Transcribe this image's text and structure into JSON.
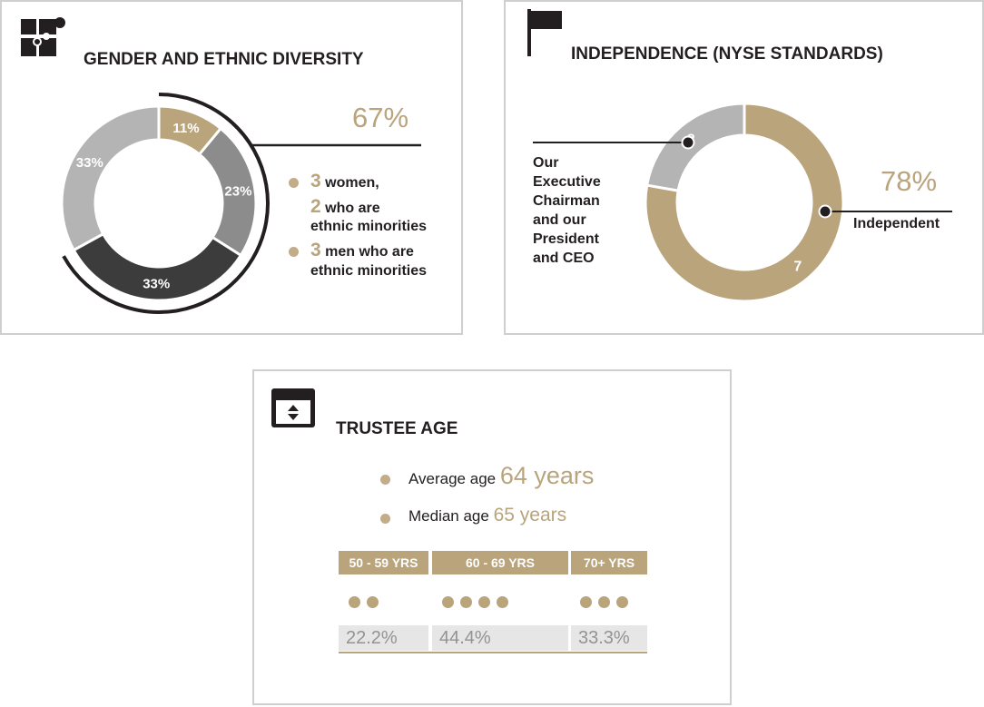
{
  "colors": {
    "accent": "#b9a47b",
    "light_gray": "#b4b4b4",
    "mid_gray": "#8c8c8c",
    "dark_gray": "#3c3c3c",
    "text": "#231f20",
    "border": "#cfcfcf"
  },
  "diversity": {
    "title": "GENDER AND ETHNIC DIVERSITY",
    "icon": "puzzle-icon",
    "highlight_pct": "67%",
    "legend": [
      {
        "num": "3",
        "text": "women,"
      },
      {
        "num": "2",
        "text": "who are"
      },
      {
        "num": "",
        "text": "ethnic minorities"
      },
      {
        "num": "3",
        "text": "men who are"
      },
      {
        "num": "",
        "text": "ethnic minorities"
      }
    ]
  },
  "independence": {
    "title": "INDEPENDENCE (NYSE STANDARDS)",
    "icon": "flag-icon",
    "highlight_pct": "78%",
    "independent_label": "Independent",
    "executive_label_lines": [
      "Our",
      "Executive",
      "Chairman",
      "and our",
      "President",
      "and CEO"
    ]
  },
  "age": {
    "title": "TRUSTEE AGE",
    "icon": "calendar-sort-icon",
    "average_label": "Average age",
    "average_value": "64 years",
    "median_label": "Median age",
    "median_value": "65 years",
    "bands": [
      {
        "label": "50 - 59 YRS",
        "count": 2,
        "pct": "22.2%"
      },
      {
        "label": "60 - 69 YRS",
        "count": 4,
        "pct": "44.4%"
      },
      {
        "label": "70+ YRS",
        "count": 3,
        "pct": "33.3%"
      }
    ]
  },
  "chart_data": [
    {
      "type": "pie",
      "title": "GENDER AND ETHNIC DIVERSITY",
      "slices": [
        {
          "label": "11%",
          "value": 11,
          "color": "#b9a47b"
        },
        {
          "label": "23%",
          "value": 23,
          "color": "#8c8c8c"
        },
        {
          "label": "33%",
          "value": 33,
          "color": "#3c3c3c"
        },
        {
          "label": "33%",
          "value": 33,
          "color": "#b4b4b4"
        }
      ]
    },
    {
      "type": "pie",
      "title": "INDEPENDENCE (NYSE STANDARDS)",
      "slices": [
        {
          "label": "7",
          "value": 7,
          "color": "#b9a47b"
        },
        {
          "label": "2",
          "value": 2,
          "color": "#b4b4b4"
        }
      ]
    }
  ]
}
